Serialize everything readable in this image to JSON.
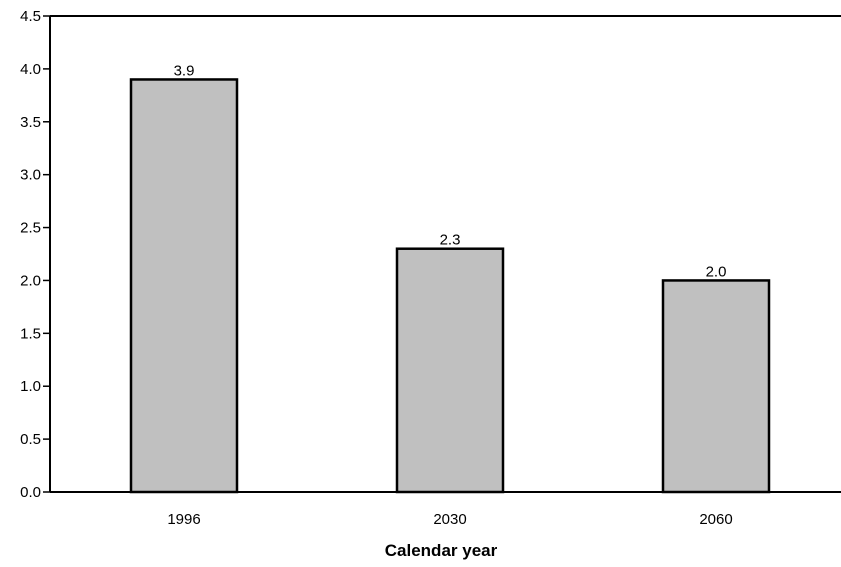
{
  "chart_data": {
    "type": "bar",
    "categories": [
      "1996",
      "2030",
      "2060"
    ],
    "values": [
      3.9,
      2.3,
      2.0
    ],
    "value_labels": [
      "3.9",
      "2.3",
      "2.0"
    ],
    "title": "",
    "xlabel": "Calendar year",
    "ylabel": "",
    "ylim": [
      0,
      4.5
    ],
    "y_ticks": [
      "0.0",
      "0.5",
      "1.0",
      "1.5",
      "2.0",
      "2.5",
      "3.0",
      "3.5",
      "4.0",
      "4.5"
    ],
    "grid": false,
    "legend": "none",
    "bar_color": "#c0c0c0",
    "bar_edge_color": "#000000"
  }
}
